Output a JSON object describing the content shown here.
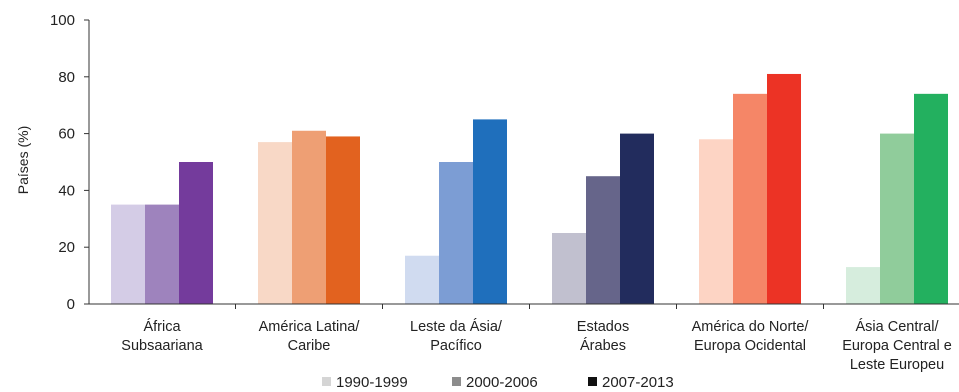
{
  "chart_data": {
    "type": "bar",
    "ylabel": "Países (%)",
    "ylim": [
      0,
      100
    ],
    "yticks": [
      "0",
      "20",
      "40",
      "60",
      "80",
      "100"
    ],
    "grid": false,
    "legend_position": "bottom",
    "categories": [
      [
        "África",
        "Subsaariana"
      ],
      [
        "América Latina/",
        "Caribe"
      ],
      [
        "Leste da Ásia/",
        "Pacífico"
      ],
      [
        "Estados",
        "Árabes"
      ],
      [
        "América do Norte/",
        "Europa Ocidental"
      ],
      [
        "Ásia Central/",
        "Europa Central e",
        "Leste Europeu"
      ]
    ],
    "series": [
      {
        "name": "1990-1999",
        "values": [
          35,
          57,
          17,
          25,
          58,
          13
        ]
      },
      {
        "name": "2000-2006",
        "values": [
          35,
          61,
          50,
          45,
          74,
          60
        ]
      },
      {
        "name": "2007-2013",
        "values": [
          50,
          59,
          65,
          60,
          81,
          74
        ]
      }
    ],
    "colors": [
      [
        "#d4cce6",
        "#9e83bd",
        "#743b9c"
      ],
      [
        "#f8d8c6",
        "#ee9f74",
        "#e2621f"
      ],
      [
        "#d0dbf0",
        "#7c9dd4",
        "#1f6fbc"
      ],
      [
        "#c1c0cf",
        "#66658a",
        "#222c5d"
      ],
      [
        "#fdd4c4",
        "#f58667",
        "#ec3325"
      ],
      [
        "#d6eddd",
        "#90cc9b",
        "#23b05f"
      ]
    ],
    "legend_colors": [
      "#d5d5d5",
      "#8c8c8c",
      "#111111"
    ]
  }
}
